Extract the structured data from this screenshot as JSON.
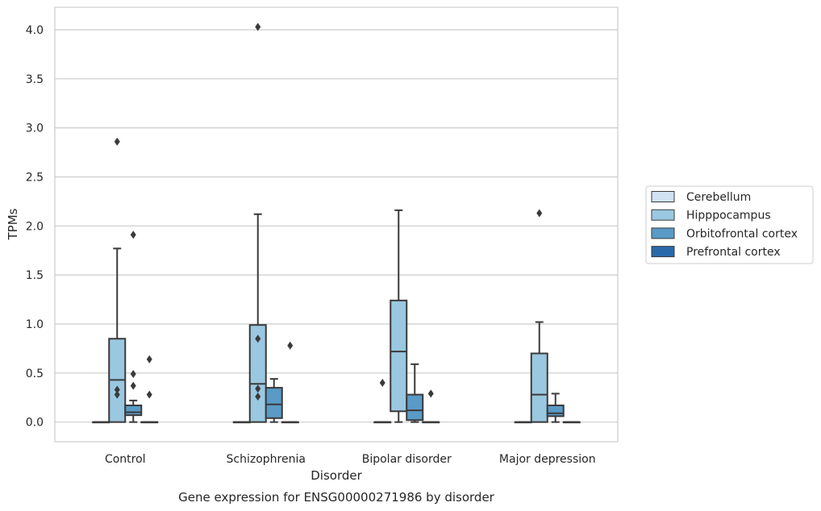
{
  "chart_data": {
    "type": "box",
    "caption": "Gene expression for ENSG00000271986 by disorder",
    "xlabel": "Disorder",
    "ylabel": "TPMs",
    "ylim": [
      -0.2,
      4.23
    ],
    "yticks": [
      0.0,
      0.5,
      1.0,
      1.5,
      2.0,
      2.5,
      3.0,
      3.5,
      4.0
    ],
    "ytick_labels": [
      "0.0",
      "0.5",
      "1.0",
      "1.5",
      "2.0",
      "2.5",
      "3.0",
      "3.5",
      "4.0"
    ],
    "grid": "horizontal",
    "legend_position": "right",
    "categories": [
      "Control",
      "Schizophrenia",
      "Bipolar disorder",
      "Major depression"
    ],
    "series": [
      {
        "name": "Cerebellum",
        "color": "#d1e2f2",
        "boxes": [
          {
            "q1": 0,
            "median": 0,
            "q3": 0,
            "whislo": 0,
            "whishi": 0,
            "fliers": []
          },
          {
            "q1": 0,
            "median": 0,
            "q3": 0,
            "whislo": 0,
            "whishi": 0,
            "fliers": []
          },
          {
            "q1": 0,
            "median": 0,
            "q3": 0,
            "whislo": 0,
            "whishi": 0,
            "fliers": [
              0.4
            ]
          },
          {
            "q1": 0,
            "median": 0,
            "q3": 0,
            "whislo": 0,
            "whishi": 0,
            "fliers": []
          }
        ]
      },
      {
        "name": "Hipppocampus",
        "color": "#9ac8e0",
        "boxes": [
          {
            "q1": 0,
            "median": 0.43,
            "q3": 0.85,
            "whislo": 0,
            "whishi": 1.77,
            "fliers": [
              2.86,
              0.33,
              0.28
            ]
          },
          {
            "q1": 0,
            "median": 0.39,
            "q3": 0.99,
            "whislo": 0,
            "whishi": 2.12,
            "fliers": [
              4.03,
              0.85,
              0.34,
              0.26
            ]
          },
          {
            "q1": 0.11,
            "median": 0.72,
            "q3": 1.24,
            "whislo": 0,
            "whishi": 2.16,
            "fliers": []
          },
          {
            "q1": 0,
            "median": 0.28,
            "q3": 0.7,
            "whislo": 0,
            "whishi": 1.02,
            "fliers": [
              2.13
            ]
          }
        ]
      },
      {
        "name": "Orbitofrontal cortex",
        "color": "#5a9ac6",
        "boxes": [
          {
            "q1": 0.07,
            "median": 0.1,
            "q3": 0.17,
            "whislo": 0,
            "whishi": 0.22,
            "fliers": [
              1.91,
              0.49,
              0.37
            ]
          },
          {
            "q1": 0.04,
            "median": 0.18,
            "q3": 0.35,
            "whislo": 0,
            "whishi": 0.44,
            "fliers": []
          },
          {
            "q1": 0.02,
            "median": 0.12,
            "q3": 0.28,
            "whislo": 0,
            "whishi": 0.59,
            "fliers": []
          },
          {
            "q1": 0.06,
            "median": 0.09,
            "q3": 0.17,
            "whislo": 0,
            "whishi": 0.29,
            "fliers": []
          }
        ]
      },
      {
        "name": "Prefrontal cortex",
        "color": "#2a69a9",
        "boxes": [
          {
            "q1": 0,
            "median": 0,
            "q3": 0,
            "whislo": 0,
            "whishi": 0,
            "fliers": [
              0.64,
              0.28
            ]
          },
          {
            "q1": 0,
            "median": 0,
            "q3": 0,
            "whislo": 0,
            "whishi": 0,
            "fliers": [
              0.78
            ]
          },
          {
            "q1": 0,
            "median": 0,
            "q3": 0,
            "whislo": 0,
            "whishi": 0,
            "fliers": [
              0.29
            ]
          },
          {
            "q1": 0,
            "median": 0,
            "q3": 0,
            "whislo": 0,
            "whishi": 0,
            "fliers": []
          }
        ]
      }
    ]
  }
}
